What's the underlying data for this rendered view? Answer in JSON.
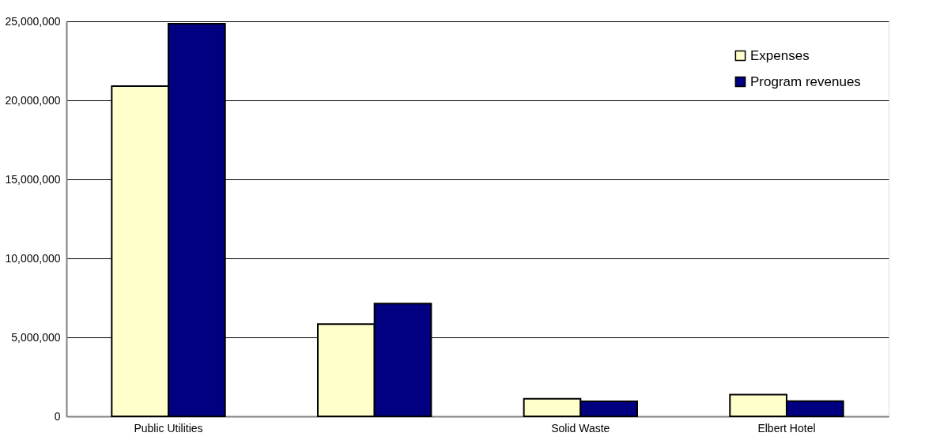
{
  "chart_data": {
    "type": "bar",
    "categories": [
      "Public Utilities",
      null,
      "Solid Waste",
      "Elbert Hotel"
    ],
    "series": [
      {
        "name": "Expenses",
        "color": "#ffffcc",
        "values": [
          20900000,
          5840000,
          1110000,
          1380000
        ]
      },
      {
        "name": "Program revenues",
        "color": "#000080",
        "values": [
          24850000,
          7140000,
          950000,
          960000
        ]
      }
    ],
    "ylim": [
      0,
      25000000
    ],
    "yticks": [
      0,
      {
        "value": 5000000,
        "label": "5,000,000"
      },
      {
        "value": 10000000,
        "label": "10,000,000"
      },
      {
        "value": 15000000,
        "label": "15,000,000"
      },
      {
        "value": 20000000,
        "label": "20,000,000"
      },
      {
        "value": 25000000,
        "label": "25,000,000"
      }
    ],
    "grid": "y",
    "legend": "top right"
  }
}
